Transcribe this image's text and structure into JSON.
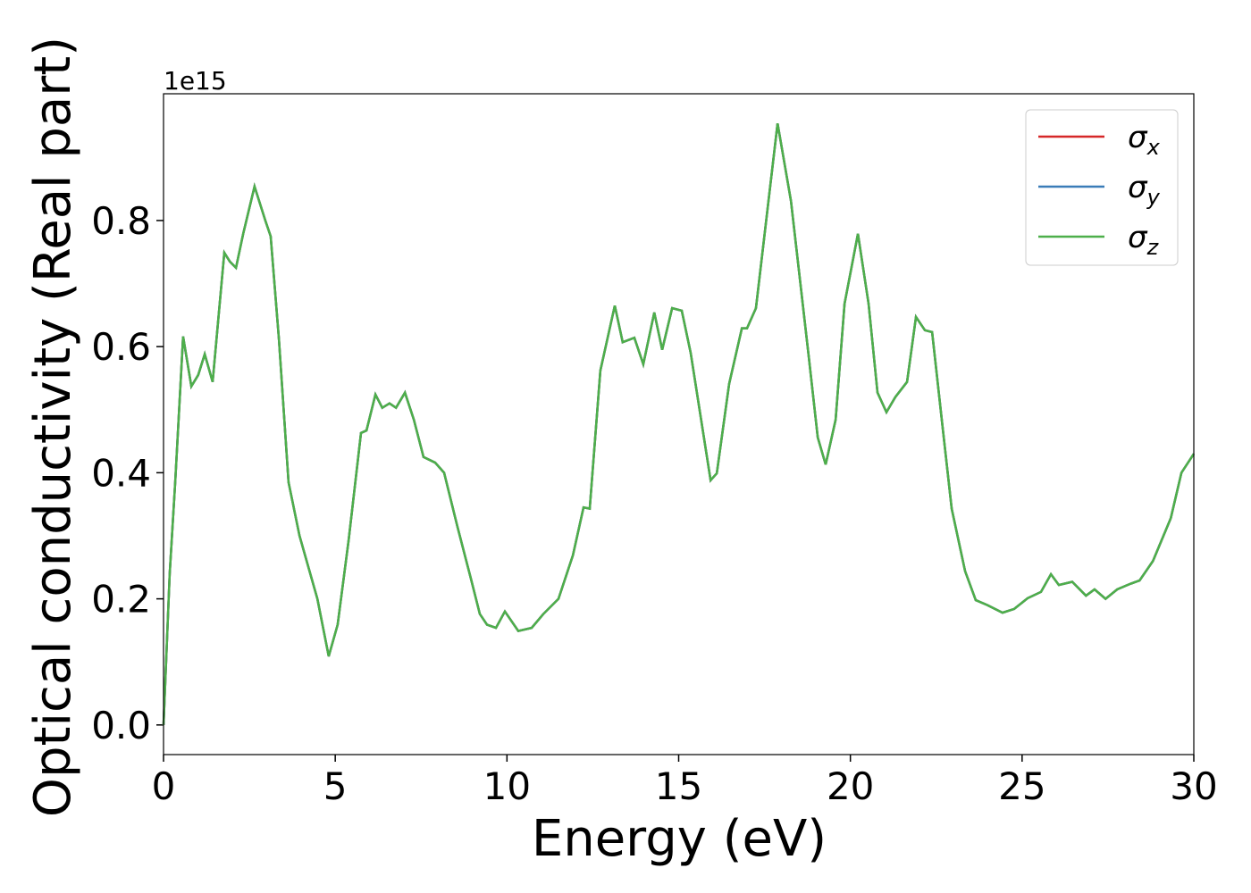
{
  "chart_data": {
    "type": "line",
    "xlabel": "Energy (eV)",
    "ylabel": "Optical conductivity (Real part)",
    "y_offset_label": "1e15",
    "x": [
      0,
      0.18,
      0.34,
      0.57,
      0.81,
      1.01,
      1.2,
      1.43,
      1.77,
      1.93,
      2.11,
      2.32,
      2.65,
      2.97,
      3.12,
      3.36,
      3.64,
      3.96,
      4.48,
      4.81,
      5.07,
      5.39,
      5.75,
      5.91,
      6.17,
      6.37,
      6.58,
      6.77,
      7.03,
      7.29,
      7.57,
      7.91,
      8.17,
      8.56,
      8.95,
      9.21,
      9.42,
      9.68,
      9.94,
      10.33,
      10.72,
      11.06,
      11.5,
      11.92,
      12.23,
      12.41,
      12.72,
      13.14,
      13.37,
      13.71,
      13.97,
      14.29,
      14.52,
      14.81,
      15.09,
      15.35,
      15.93,
      16.11,
      16.47,
      16.84,
      16.99,
      17.25,
      17.57,
      17.88,
      18.27,
      18.79,
      19.05,
      19.28,
      19.57,
      19.83,
      20.22,
      20.53,
      20.79,
      21.05,
      21.31,
      21.65,
      21.91,
      22.17,
      22.38,
      22.69,
      22.95,
      23.34,
      23.65,
      23.99,
      24.43,
      24.77,
      25.16,
      25.55,
      25.84,
      26.07,
      26.46,
      26.86,
      27.11,
      27.43,
      27.77,
      28.16,
      28.42,
      28.81,
      29.33,
      29.64,
      30
    ],
    "series": [
      {
        "name": "σx",
        "color": "#d62728",
        "values": [
          0,
          0.24,
          0.385,
          0.616,
          0.537,
          0.555,
          0.588,
          0.544,
          0.749,
          0.735,
          0.725,
          0.779,
          0.854,
          0.799,
          0.775,
          0.612,
          0.385,
          0.3,
          0.2,
          0.109,
          0.159,
          0.293,
          0.463,
          0.467,
          0.524,
          0.503,
          0.51,
          0.503,
          0.527,
          0.484,
          0.425,
          0.416,
          0.4,
          0.314,
          0.232,
          0.176,
          0.159,
          0.154,
          0.18,
          0.149,
          0.154,
          0.176,
          0.2,
          0.269,
          0.345,
          0.343,
          0.562,
          0.665,
          0.607,
          0.614,
          0.572,
          0.654,
          0.595,
          0.661,
          0.657,
          0.59,
          0.388,
          0.399,
          0.541,
          0.629,
          0.629,
          0.661,
          0.81,
          0.954,
          0.831,
          0.583,
          0.456,
          0.413,
          0.484,
          0.668,
          0.779,
          0.668,
          0.527,
          0.496,
          0.52,
          0.544,
          0.647,
          0.626,
          0.623,
          0.47,
          0.343,
          0.244,
          0.198,
          0.19,
          0.178,
          0.184,
          0.201,
          0.211,
          0.239,
          0.222,
          0.227,
          0.205,
          0.215,
          0.2,
          0.215,
          0.224,
          0.229,
          0.26,
          0.328,
          0.4,
          0.43
        ]
      },
      {
        "name": "σy",
        "color": "#3a7cb8",
        "values": [
          0,
          0.24,
          0.385,
          0.616,
          0.537,
          0.555,
          0.588,
          0.544,
          0.749,
          0.735,
          0.725,
          0.779,
          0.854,
          0.799,
          0.775,
          0.612,
          0.385,
          0.3,
          0.2,
          0.109,
          0.159,
          0.293,
          0.463,
          0.467,
          0.524,
          0.503,
          0.51,
          0.503,
          0.527,
          0.484,
          0.425,
          0.416,
          0.4,
          0.314,
          0.232,
          0.176,
          0.159,
          0.154,
          0.18,
          0.149,
          0.154,
          0.176,
          0.2,
          0.269,
          0.345,
          0.343,
          0.562,
          0.665,
          0.607,
          0.614,
          0.572,
          0.654,
          0.595,
          0.661,
          0.657,
          0.59,
          0.388,
          0.399,
          0.541,
          0.629,
          0.629,
          0.661,
          0.81,
          0.954,
          0.831,
          0.583,
          0.456,
          0.413,
          0.484,
          0.668,
          0.779,
          0.668,
          0.527,
          0.496,
          0.52,
          0.544,
          0.647,
          0.626,
          0.623,
          0.47,
          0.343,
          0.244,
          0.198,
          0.19,
          0.178,
          0.184,
          0.201,
          0.211,
          0.239,
          0.222,
          0.227,
          0.205,
          0.215,
          0.2,
          0.215,
          0.224,
          0.229,
          0.26,
          0.328,
          0.4,
          0.43
        ]
      },
      {
        "name": "σz",
        "color": "#4daf4a",
        "values": [
          0,
          0.24,
          0.385,
          0.616,
          0.537,
          0.555,
          0.588,
          0.544,
          0.749,
          0.735,
          0.725,
          0.779,
          0.854,
          0.799,
          0.775,
          0.612,
          0.385,
          0.3,
          0.2,
          0.109,
          0.159,
          0.293,
          0.463,
          0.467,
          0.524,
          0.503,
          0.51,
          0.503,
          0.527,
          0.484,
          0.425,
          0.416,
          0.4,
          0.314,
          0.232,
          0.176,
          0.159,
          0.154,
          0.18,
          0.149,
          0.154,
          0.176,
          0.2,
          0.269,
          0.345,
          0.343,
          0.562,
          0.665,
          0.607,
          0.614,
          0.572,
          0.654,
          0.595,
          0.661,
          0.657,
          0.59,
          0.388,
          0.399,
          0.541,
          0.629,
          0.629,
          0.661,
          0.81,
          0.954,
          0.831,
          0.583,
          0.456,
          0.413,
          0.484,
          0.668,
          0.779,
          0.668,
          0.527,
          0.496,
          0.52,
          0.544,
          0.647,
          0.626,
          0.623,
          0.47,
          0.343,
          0.244,
          0.198,
          0.19,
          0.178,
          0.184,
          0.201,
          0.211,
          0.239,
          0.222,
          0.227,
          0.205,
          0.215,
          0.2,
          0.215,
          0.224,
          0.229,
          0.26,
          0.328,
          0.4,
          0.43
        ]
      }
    ],
    "xlim": [
      0,
      30
    ],
    "xticks": [
      0,
      5,
      10,
      15,
      20,
      25,
      30
    ],
    "ylim": [
      -0.047,
      1.001
    ],
    "yticks": [
      {
        "value": 0,
        "label": "0.0"
      },
      0.2,
      0.4,
      0.6,
      0.8
    ],
    "grid": false,
    "legend": "upper right"
  }
}
